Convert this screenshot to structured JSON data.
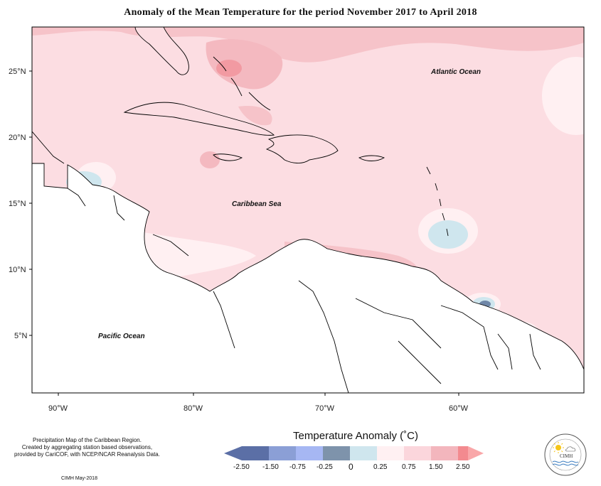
{
  "title": "Anomaly of the Mean Temperature for the period November 2017 to April 2018",
  "map": {
    "region": "Caribbean",
    "lon_range": [
      -92,
      -52
    ],
    "lat_range": [
      1.5,
      28
    ],
    "x_ticks": [
      "90°W",
      "80°W",
      "70°W",
      "60°W"
    ],
    "y_ticks": [
      "25°N",
      "20°N",
      "15°N",
      "10°N",
      "5°N"
    ],
    "labels": {
      "atlantic": "Atlantic Ocean",
      "caribbean": "Caribbean Sea",
      "pacific": "Pacific Ocean"
    },
    "base_anomaly_color": "#fcdde2",
    "warm_anomaly_color": "#f6c3c9",
    "strong_warm_color": "#f29aa2",
    "cool_anomaly_color": "#cfe6ee",
    "strong_cool_color": "#6f87a8"
  },
  "legend": {
    "title": "Temperature Anomaly (˚C)",
    "ticks": [
      "-2.50",
      "-1.50",
      "-0.75",
      "-0.25",
      "0",
      "0.25",
      "0.75",
      "1.50",
      "2.50"
    ],
    "colors": [
      "#5b6fa6",
      "#8b9fd6",
      "#a6b7f3",
      "#7e93ab",
      "#cfe6ee",
      "#fff0f2",
      "#fbd6dc",
      "#f3b6bd",
      "#f38a8f",
      "#f9a7a9"
    ]
  },
  "credits": {
    "line1": "Precipitation Map of the Caribbean Region.",
    "line2": "Created by aggregating station based observations,",
    "line3": "provided by CariCOF, with NCEP/NCAR Reanalysis Data.",
    "date": "CIMH May-2018"
  },
  "logo": {
    "text": "CIMH"
  }
}
